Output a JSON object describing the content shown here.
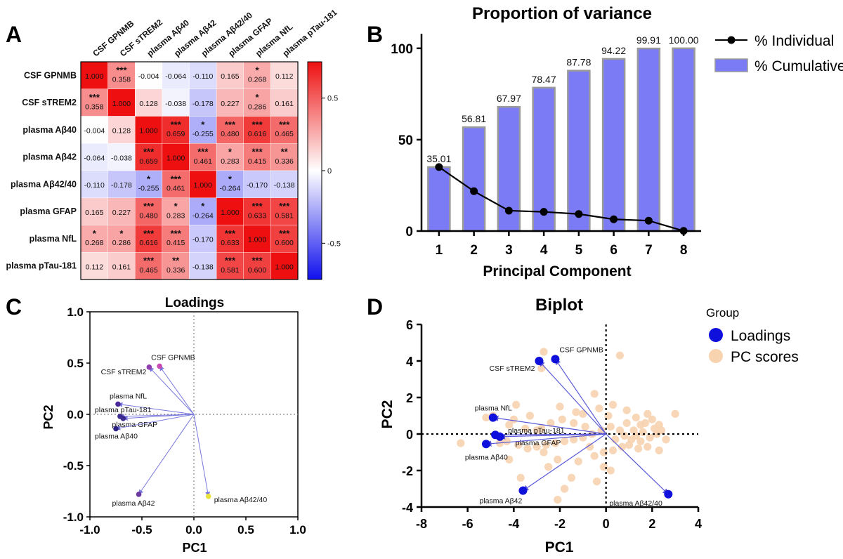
{
  "chart_data": [
    {
      "panel": "A",
      "type": "heatmap",
      "variables": [
        "CSF GPNMB",
        "CSF sTREM2",
        "plasma Aβ40",
        "plasma Aβ42",
        "plasma Aβ42/40",
        "plasma GFAP",
        "plasma NfL",
        "plasma pTau-181"
      ],
      "values": [
        [
          "1.000",
          "0.358",
          "-0.004",
          "-0.064",
          "-0.110",
          "0.165",
          "0.268",
          "0.112"
        ],
        [
          "0.358",
          "1.000",
          "0.128",
          "-0.038",
          "-0.178",
          "0.227",
          "0.286",
          "0.161"
        ],
        [
          "-0.004",
          "0.128",
          "1.000",
          "0.659",
          "-0.255",
          "0.480",
          "0.616",
          "0.465"
        ],
        [
          "-0.064",
          "-0.038",
          "0.659",
          "1.000",
          "0.461",
          "0.283",
          "0.415",
          "0.336"
        ],
        [
          "-0.110",
          "-0.178",
          "-0.255",
          "0.461",
          "1.000",
          "-0.264",
          "-0.170",
          "-0.138"
        ],
        [
          "0.165",
          "0.227",
          "0.480",
          "0.283",
          "-0.264",
          "1.000",
          "0.633",
          "0.581"
        ],
        [
          "0.268",
          "0.286",
          "0.616",
          "0.415",
          "-0.170",
          "0.633",
          "1.000",
          "0.600"
        ],
        [
          "0.112",
          "0.161",
          "0.465",
          "0.336",
          "-0.138",
          "0.581",
          "0.600",
          "1.000"
        ]
      ],
      "stars": [
        [
          "",
          "***",
          "",
          "",
          "",
          "",
          "*",
          ""
        ],
        [
          "***",
          "",
          "",
          "",
          "",
          "",
          "*",
          ""
        ],
        [
          "",
          "",
          "",
          "***",
          "*",
          "***",
          "***",
          "***"
        ],
        [
          "",
          "",
          "***",
          "",
          "***",
          "*",
          "***",
          "**"
        ],
        [
          "",
          "",
          "*",
          "***",
          "",
          "*",
          "",
          ""
        ],
        [
          "",
          "",
          "***",
          "*",
          "*",
          "",
          "***",
          "***"
        ],
        [
          "*",
          "*",
          "***",
          "***",
          "",
          "***",
          "",
          "***"
        ],
        [
          "",
          "",
          "***",
          "**",
          "",
          "***",
          "***",
          ""
        ]
      ],
      "colorbar": {
        "min": -0.75,
        "max": 0.75,
        "ticks": [
          "0.5",
          "0",
          "-0.5"
        ],
        "tick_values": [
          0.5,
          0,
          -0.5
        ]
      },
      "colors": {
        "negative": "#1010ee",
        "neutral": "#ffffff",
        "positive": "#ee1010"
      }
    },
    {
      "panel": "B",
      "type": "bar",
      "title": "Proportion of variance",
      "xlabel": "Principal Component",
      "categories": [
        "1",
        "2",
        "3",
        "4",
        "5",
        "6",
        "7",
        "8"
      ],
      "series": [
        {
          "name": "% Cumulative",
          "values": [
            35.01,
            56.81,
            67.97,
            78.47,
            87.78,
            94.22,
            99.91,
            100.0
          ],
          "labels": [
            "35.01",
            "56.81",
            "67.97",
            "78.47",
            "87.78",
            "94.22",
            "99.91",
            "100.00"
          ],
          "color": "#7b7bf5"
        },
        {
          "name": "% Individual",
          "type": "line",
          "values": [
            35.01,
            21.8,
            11.16,
            10.5,
            9.31,
            6.44,
            5.69,
            0.09
          ],
          "color": "#000000"
        }
      ],
      "yticks": [
        "0",
        "50",
        "100"
      ],
      "ytick_values": [
        0,
        50,
        100
      ],
      "ylim": [
        0,
        108
      ],
      "legend": "top-right"
    },
    {
      "panel": "C",
      "type": "scatter",
      "title": "Loadings",
      "xlabel": "PC1",
      "ylabel": "PC2",
      "xlim": [
        -1.0,
        1.0
      ],
      "ylim": [
        -1.0,
        1.0
      ],
      "xticks": [
        "-1.0",
        "-0.5",
        "0.0",
        "0.5",
        "1.0"
      ],
      "xtick_values": [
        -1.0,
        -0.5,
        0.0,
        0.5,
        1.0
      ],
      "yticks": [
        "1.0",
        "0.5",
        "0.0",
        "-0.5",
        "-1.0"
      ],
      "ytick_values": [
        1.0,
        0.5,
        0.0,
        -0.5,
        -1.0
      ],
      "points": [
        {
          "label": "CSF GPNMB",
          "x": -0.33,
          "y": 0.47,
          "color": "#c84ab4"
        },
        {
          "label": "CSF sTREM2",
          "x": -0.43,
          "y": 0.46,
          "color": "#8f3fb0"
        },
        {
          "label": "plasma NfL",
          "x": -0.73,
          "y": 0.1,
          "color": "#4a2a98"
        },
        {
          "label": "plasma pTau-181",
          "x": -0.71,
          "y": -0.02,
          "color": "#3b2a90"
        },
        {
          "label": "plasma GFAP",
          "x": -0.68,
          "y": -0.04,
          "color": "#3b2a90"
        },
        {
          "label": "plasma Aβ40",
          "x": -0.75,
          "y": -0.14,
          "color": "#2a2080"
        },
        {
          "label": "plasma Aβ42",
          "x": -0.53,
          "y": -0.78,
          "color": "#6a3aa0"
        },
        {
          "label": "plasma Aβ42/40",
          "x": 0.14,
          "y": -0.8,
          "color": "#e8e23a"
        }
      ]
    },
    {
      "panel": "D",
      "type": "scatter",
      "title": "Biplot",
      "xlabel": "PC1",
      "ylabel": "PC2",
      "xlim": [
        -8,
        4
      ],
      "ylim": [
        -4,
        6
      ],
      "xticks": [
        "-8",
        "-6",
        "-4",
        "-2",
        "0",
        "2",
        "4"
      ],
      "xtick_values": [
        -8,
        -6,
        -4,
        -2,
        0,
        2,
        4
      ],
      "yticks": [
        "6",
        "4",
        "2",
        "0",
        "-2",
        "-4"
      ],
      "ytick_values": [
        6,
        4,
        2,
        0,
        -2,
        -4
      ],
      "legend_title": "Group",
      "series": [
        {
          "name": "Loadings",
          "color": "#1010dd",
          "points": [
            {
              "label": "CSF GPNMB",
              "x": -2.2,
              "y": 4.1
            },
            {
              "label": "CSF sTREM2",
              "x": -2.9,
              "y": 4.0
            },
            {
              "label": "plasma NfL",
              "x": -4.9,
              "y": 0.9
            },
            {
              "label": "plasma pTau-181",
              "x": -4.8,
              "y": -0.05
            },
            {
              "label": "plasma GFAP",
              "x": -4.6,
              "y": -0.15
            },
            {
              "label": "plasma Aβ40",
              "x": -5.2,
              "y": -0.55
            },
            {
              "label": "plasma Aβ42",
              "x": -3.6,
              "y": -3.1
            },
            {
              "label": "plasma Aβ42/40",
              "x": 2.7,
              "y": -3.3
            }
          ]
        },
        {
          "name": "PC scores",
          "color": "#f7d3b0",
          "points": [
            [
              -2.7,
              4.5
            ],
            [
              -2.8,
              3.6
            ],
            [
              0.6,
              4.3
            ],
            [
              -4.9,
              1.0
            ],
            [
              -3.9,
              1.6
            ],
            [
              -4.0,
              0.8
            ],
            [
              -4.2,
              0.5
            ],
            [
              -3.5,
              0.3
            ],
            [
              -3.0,
              0.2
            ],
            [
              -2.8,
              0.3
            ],
            [
              -2.4,
              0.6
            ],
            [
              -1.9,
              0.8
            ],
            [
              -1.3,
              1.2
            ],
            [
              -0.9,
              0.4
            ],
            [
              -0.5,
              2.2
            ],
            [
              -0.3,
              1.4
            ],
            [
              0.1,
              1.0
            ],
            [
              0.3,
              1.6
            ],
            [
              0.9,
              1.3
            ],
            [
              1.3,
              0.9
            ],
            [
              1.7,
              0.6
            ],
            [
              2.1,
              0.3
            ],
            [
              2.3,
              0.5
            ],
            [
              3.0,
              1.1
            ],
            [
              2.2,
              0.0
            ],
            [
              1.9,
              -0.2
            ],
            [
              1.5,
              -0.4
            ],
            [
              1.1,
              -0.3
            ],
            [
              0.8,
              -0.1
            ],
            [
              0.6,
              0.2
            ],
            [
              0.2,
              0.4
            ],
            [
              -0.2,
              0.2
            ],
            [
              -0.6,
              0.0
            ],
            [
              -1.0,
              -0.2
            ],
            [
              -1.4,
              -0.3
            ],
            [
              -1.8,
              -0.4
            ],
            [
              -2.2,
              -0.5
            ],
            [
              -2.6,
              -0.6
            ],
            [
              -3.0,
              -0.7
            ],
            [
              -3.4,
              -0.8
            ],
            [
              -3.8,
              -0.6
            ],
            [
              -4.3,
              -0.4
            ],
            [
              -4.6,
              -0.5
            ],
            [
              -5.2,
              0.9
            ],
            [
              -6.3,
              -0.5
            ],
            [
              -1.2,
              -1.5
            ],
            [
              -0.5,
              -1.2
            ],
            [
              -0.1,
              -1.0
            ],
            [
              0.3,
              -0.9
            ],
            [
              0.7,
              -0.7
            ],
            [
              1.0,
              -0.6
            ],
            [
              1.4,
              -0.8
            ],
            [
              1.8,
              -0.7
            ],
            [
              2.3,
              -0.9
            ],
            [
              -2.7,
              -1.0
            ],
            [
              -2.1,
              -1.4
            ],
            [
              -1.5,
              -2.4
            ],
            [
              -0.4,
              -2.6
            ],
            [
              -0.1,
              -1.8
            ],
            [
              0.2,
              -2.0
            ],
            [
              -1.8,
              -3.0
            ],
            [
              -2.1,
              -3.6
            ],
            [
              -3.7,
              -2.4
            ],
            [
              -2.5,
              -1.8
            ],
            [
              -4.2,
              -1.4
            ],
            [
              1.2,
              0.2
            ],
            [
              1.5,
              0.5
            ],
            [
              0.9,
              0.6
            ],
            [
              1.6,
              0.1
            ],
            [
              2.0,
              0.8
            ],
            [
              -1.0,
              1.1
            ],
            [
              -1.4,
              0.6
            ],
            [
              -0.7,
              -0.7
            ],
            [
              0.4,
              -0.3
            ],
            [
              1.3,
              -0.1
            ],
            [
              2.6,
              -0.3
            ],
            [
              2.4,
              0.2
            ],
            [
              1.8,
              1.1
            ],
            [
              -2.0,
              1.5
            ],
            [
              -3.3,
              1.0
            ]
          ]
        }
      ]
    }
  ],
  "panels": {
    "a": "A",
    "b": "B",
    "c": "C",
    "d": "D"
  },
  "legend": {
    "individual": "% Individual",
    "cumulative": "% Cumulative",
    "group_title": "Group",
    "loadings": "Loadings",
    "pc_scores": "PC scores"
  }
}
